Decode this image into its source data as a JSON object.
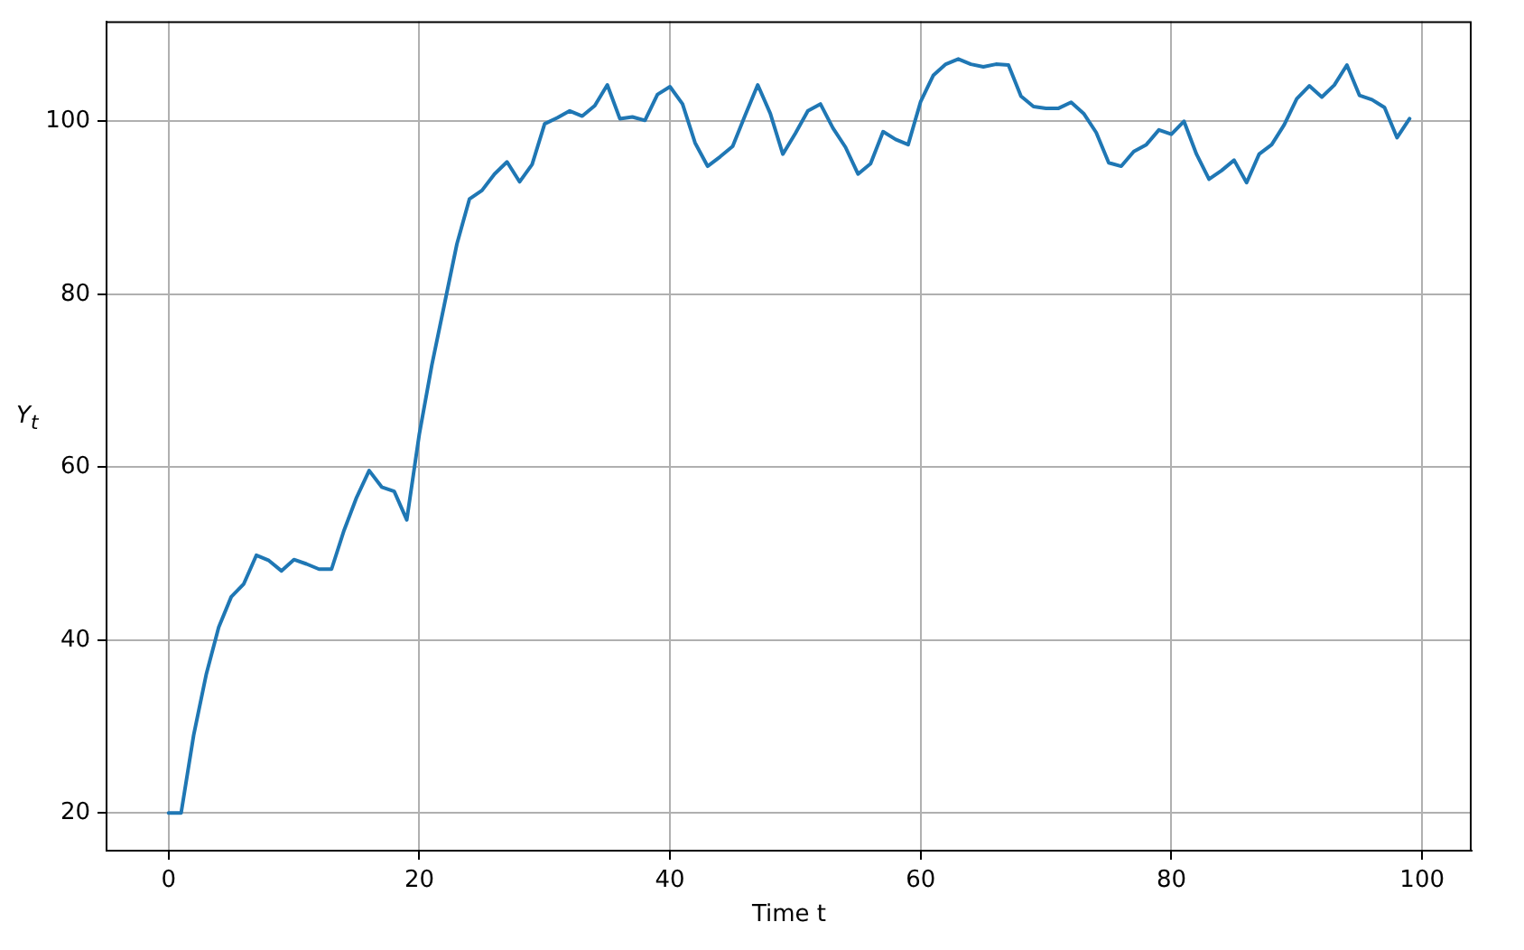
{
  "chart_data": {
    "type": "line",
    "xlabel": "Time t",
    "ylabel": "Y$_{t}$",
    "x": [
      0,
      1,
      2,
      3,
      4,
      5,
      6,
      7,
      8,
      9,
      10,
      11,
      12,
      13,
      14,
      15,
      16,
      17,
      18,
      19,
      20,
      21,
      22,
      23,
      24,
      25,
      26,
      27,
      28,
      29,
      30,
      31,
      32,
      33,
      34,
      35,
      36,
      37,
      38,
      39,
      40,
      41,
      42,
      43,
      44,
      45,
      46,
      47,
      48,
      49,
      50,
      51,
      52,
      53,
      54,
      55,
      56,
      57,
      58,
      59,
      60,
      61,
      62,
      63,
      64,
      65,
      66,
      67,
      68,
      69,
      70,
      71,
      72,
      73,
      74,
      75,
      76,
      77,
      78,
      79,
      80,
      81,
      82,
      83,
      84,
      85,
      86,
      87,
      88,
      89,
      90,
      91,
      92,
      93,
      94,
      95,
      96,
      97,
      98,
      99
    ],
    "series": [
      {
        "color": "#1f77b4",
        "values": [
          20,
          20,
          29,
          36,
          41.5,
          45,
          46.5,
          49.8,
          49.2,
          48,
          49.3,
          48.8,
          48.2,
          48.2,
          52.7,
          56.5,
          59.6,
          57.7,
          57.2,
          53.9,
          63.8,
          71.8,
          78.8,
          85.8,
          91,
          92,
          93.9,
          95.3,
          93,
          95,
          99.7,
          100.4,
          101.2,
          100.6,
          101.8,
          104.2,
          100.3,
          100.5,
          100.1,
          103.1,
          104,
          102,
          97.5,
          94.8,
          95.9,
          97.1,
          100.7,
          104.2,
          100.9,
          96.2,
          98.6,
          101.2,
          102,
          99.2,
          97,
          93.9,
          95.1,
          98.8,
          97.9,
          97.3,
          102.3,
          105.3,
          106.6,
          107.2,
          106.6,
          106.3,
          106.6,
          106.5,
          102.9,
          101.7,
          101.5,
          101.5,
          102.2,
          100.9,
          98.7,
          95.2,
          94.8,
          96.5,
          97.3,
          99,
          98.5,
          100,
          96.2,
          93.3,
          94.3,
          95.5,
          92.9,
          96.2,
          97.3,
          99.6,
          102.6,
          104.1,
          102.8,
          104.2,
          106.5,
          103,
          102.5,
          101.6,
          98.1,
          100.3
        ]
      }
    ],
    "xlim": [
      -4.95,
      103.95
    ],
    "ylim": [
      15.64,
      111.56
    ],
    "xticks": [
      0,
      20,
      40,
      60,
      80,
      100
    ],
    "yticks": [
      20,
      40,
      60,
      80,
      100
    ],
    "grid": true
  }
}
